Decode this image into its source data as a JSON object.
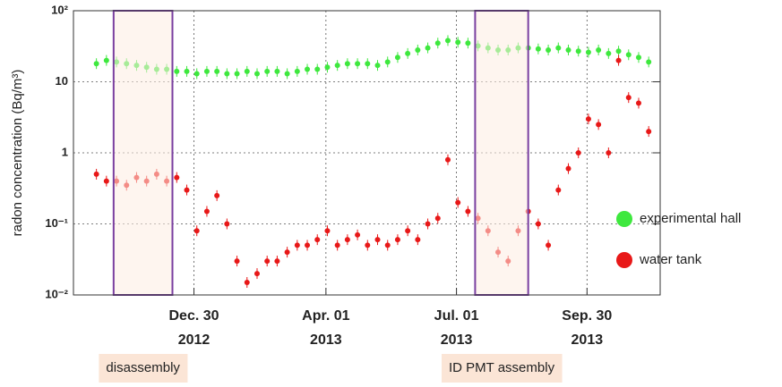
{
  "chart_data": {
    "type": "scatter",
    "y_label": "radon concentration (Bq/m³)",
    "log_y": true,
    "grid": true,
    "legend": "right",
    "xlim": [
      "2012-10-07",
      "2013-11-20"
    ],
    "ylim": [
      0.01,
      100
    ],
    "yticks": [
      {
        "value": 0.01,
        "label": "10⁻²"
      },
      {
        "value": 0.1,
        "label": "10⁻¹"
      },
      1,
      10,
      {
        "value": 100,
        "label": "10²"
      }
    ],
    "xticks": [
      {
        "value": "2012-12-30",
        "label": [
          "Dec. 30",
          "2012"
        ]
      },
      {
        "value": "2013-04-01",
        "label": [
          "Apr. 01",
          "2013"
        ]
      },
      {
        "value": "2013-07-01",
        "label": [
          "Jul. 01",
          "2013"
        ]
      },
      {
        "value": "2013-09-30",
        "label": [
          "Sep. 30",
          "2013"
        ]
      }
    ],
    "x": [
      "2012-10-23",
      "2012-10-30",
      "2012-11-06",
      "2012-11-13",
      "2012-11-20",
      "2012-11-27",
      "2012-12-04",
      "2012-12-11",
      "2012-12-18",
      "2012-12-25",
      "2013-01-01",
      "2013-01-08",
      "2013-01-15",
      "2013-01-22",
      "2013-01-29",
      "2013-02-05",
      "2013-02-12",
      "2013-02-19",
      "2013-02-26",
      "2013-03-05",
      "2013-03-12",
      "2013-03-19",
      "2013-03-26",
      "2013-04-02",
      "2013-04-09",
      "2013-04-16",
      "2013-04-23",
      "2013-04-30",
      "2013-05-07",
      "2013-05-14",
      "2013-05-21",
      "2013-05-28",
      "2013-06-04",
      "2013-06-11",
      "2013-06-18",
      "2013-06-25",
      "2013-07-02",
      "2013-07-09",
      "2013-07-16",
      "2013-07-23",
      "2013-07-30",
      "2013-08-06",
      "2013-08-13",
      "2013-08-20",
      "2013-08-27",
      "2013-09-03",
      "2013-09-10",
      "2013-09-17",
      "2013-09-24",
      "2013-10-01",
      "2013-10-08",
      "2013-10-15",
      "2013-10-22",
      "2013-10-29",
      "2013-11-05",
      "2013-11-12"
    ],
    "series": [
      {
        "name": "experimental hall",
        "color": "#3ee83e",
        "values": [
          18,
          20,
          19,
          18,
          17,
          16,
          15,
          15,
          14,
          14,
          13,
          14,
          14,
          13,
          13,
          14,
          13,
          14,
          14,
          13,
          14,
          15,
          15,
          16,
          17,
          18,
          18,
          18,
          17,
          19,
          22,
          25,
          28,
          30,
          35,
          38,
          36,
          35,
          32,
          30,
          28,
          28,
          30,
          30,
          29,
          28,
          30,
          28,
          27,
          26,
          28,
          25,
          27,
          24,
          22,
          19
        ]
      },
      {
        "name": "water tank",
        "color": "#e81818",
        "values": [
          0.5,
          0.4,
          0.4,
          0.35,
          0.45,
          0.4,
          0.5,
          0.4,
          0.45,
          0.3,
          0.08,
          0.15,
          0.25,
          0.1,
          0.03,
          0.015,
          0.02,
          0.03,
          0.03,
          0.04,
          0.05,
          0.05,
          0.06,
          0.08,
          0.05,
          0.06,
          0.07,
          0.05,
          0.06,
          0.05,
          0.06,
          0.08,
          0.06,
          0.1,
          0.12,
          0.8,
          0.2,
          0.15,
          0.12,
          0.08,
          0.04,
          0.03,
          0.08,
          0.15,
          0.1,
          0.05,
          0.3,
          0.6,
          1,
          3,
          2.5,
          1,
          20,
          6,
          5,
          2
        ]
      }
    ],
    "annotations": [
      {
        "text": "disassembly",
        "start": "2012-11-04",
        "end": "2012-12-15"
      },
      {
        "text": "ID PMT assembly",
        "start": "2013-07-14",
        "end": "2013-08-20"
      }
    ]
  }
}
